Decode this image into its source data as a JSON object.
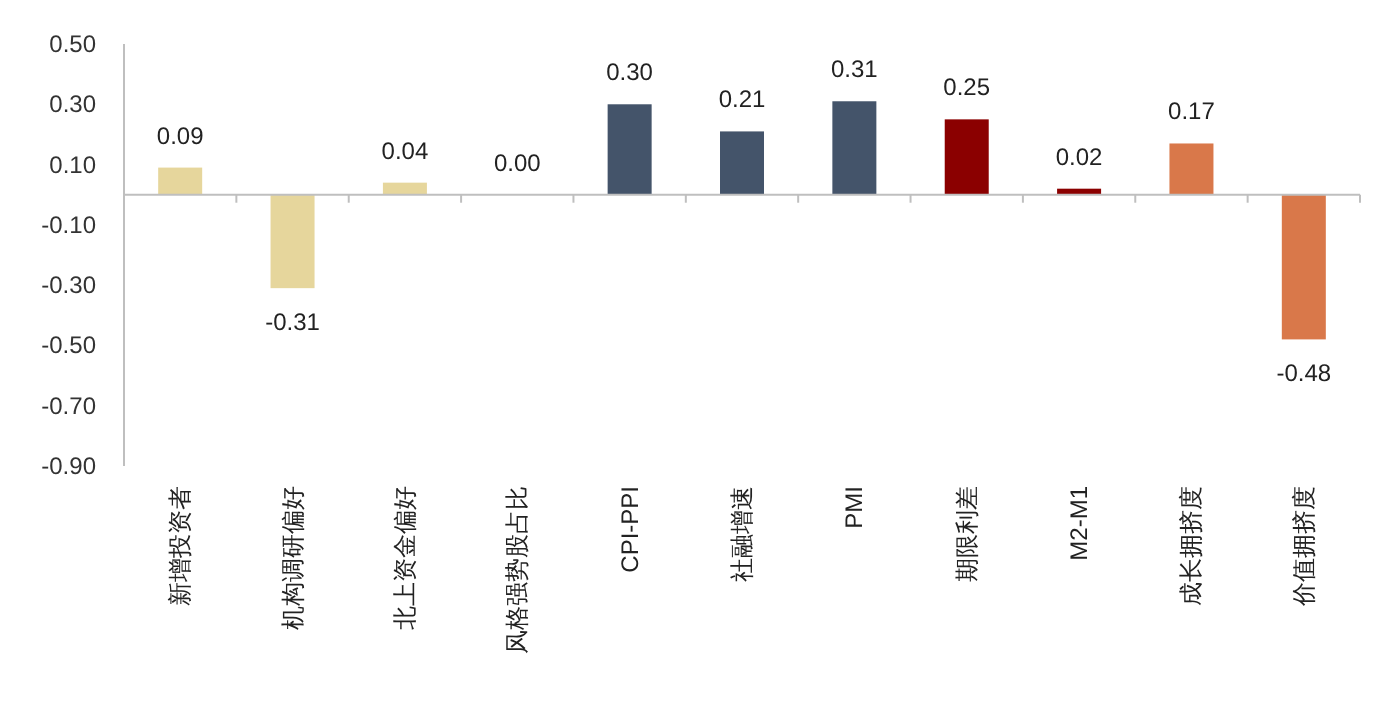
{
  "chart_data": {
    "type": "bar",
    "categories": [
      "新增投资者",
      "机构调研偏好",
      "北上资金偏好",
      "风格强势股占比",
      "CPI-PPI",
      "社融增速",
      "PMI",
      "期限利差",
      "M2-M1",
      "成长拥挤度",
      "价值拥挤度"
    ],
    "values": [
      0.09,
      -0.31,
      0.04,
      0,
      0.3,
      0.21,
      0.31,
      0.25,
      0.02,
      0.17,
      -0.48
    ],
    "value_labels": [
      "0.09",
      "-0.31",
      "0.04",
      "0.00",
      "0.30",
      "0.21",
      "0.31",
      "0.25",
      "0.02",
      "0.17",
      "-0.48"
    ],
    "colors": [
      "#e6d69c",
      "#e6d69c",
      "#e6d69c",
      "#e6d69c",
      "#44546a",
      "#44546a",
      "#44546a",
      "#8b0000",
      "#8b0000",
      "#d9784a",
      "#d9784a"
    ],
    "ylim": [
      -0.9,
      0.5
    ],
    "yticks": [
      {
        "value": 0.5,
        "label": "0.50"
      },
      {
        "value": 0.3,
        "label": "0.30"
      },
      {
        "value": 0.1,
        "label": "0.10"
      },
      {
        "value": -0.1,
        "label": "-0.10"
      },
      {
        "value": -0.3,
        "label": "-0.30"
      },
      {
        "value": -0.5,
        "label": "-0.50"
      },
      {
        "value": -0.7,
        "label": "-0.70"
      },
      {
        "value": -0.9,
        "label": "-0.90"
      }
    ]
  }
}
